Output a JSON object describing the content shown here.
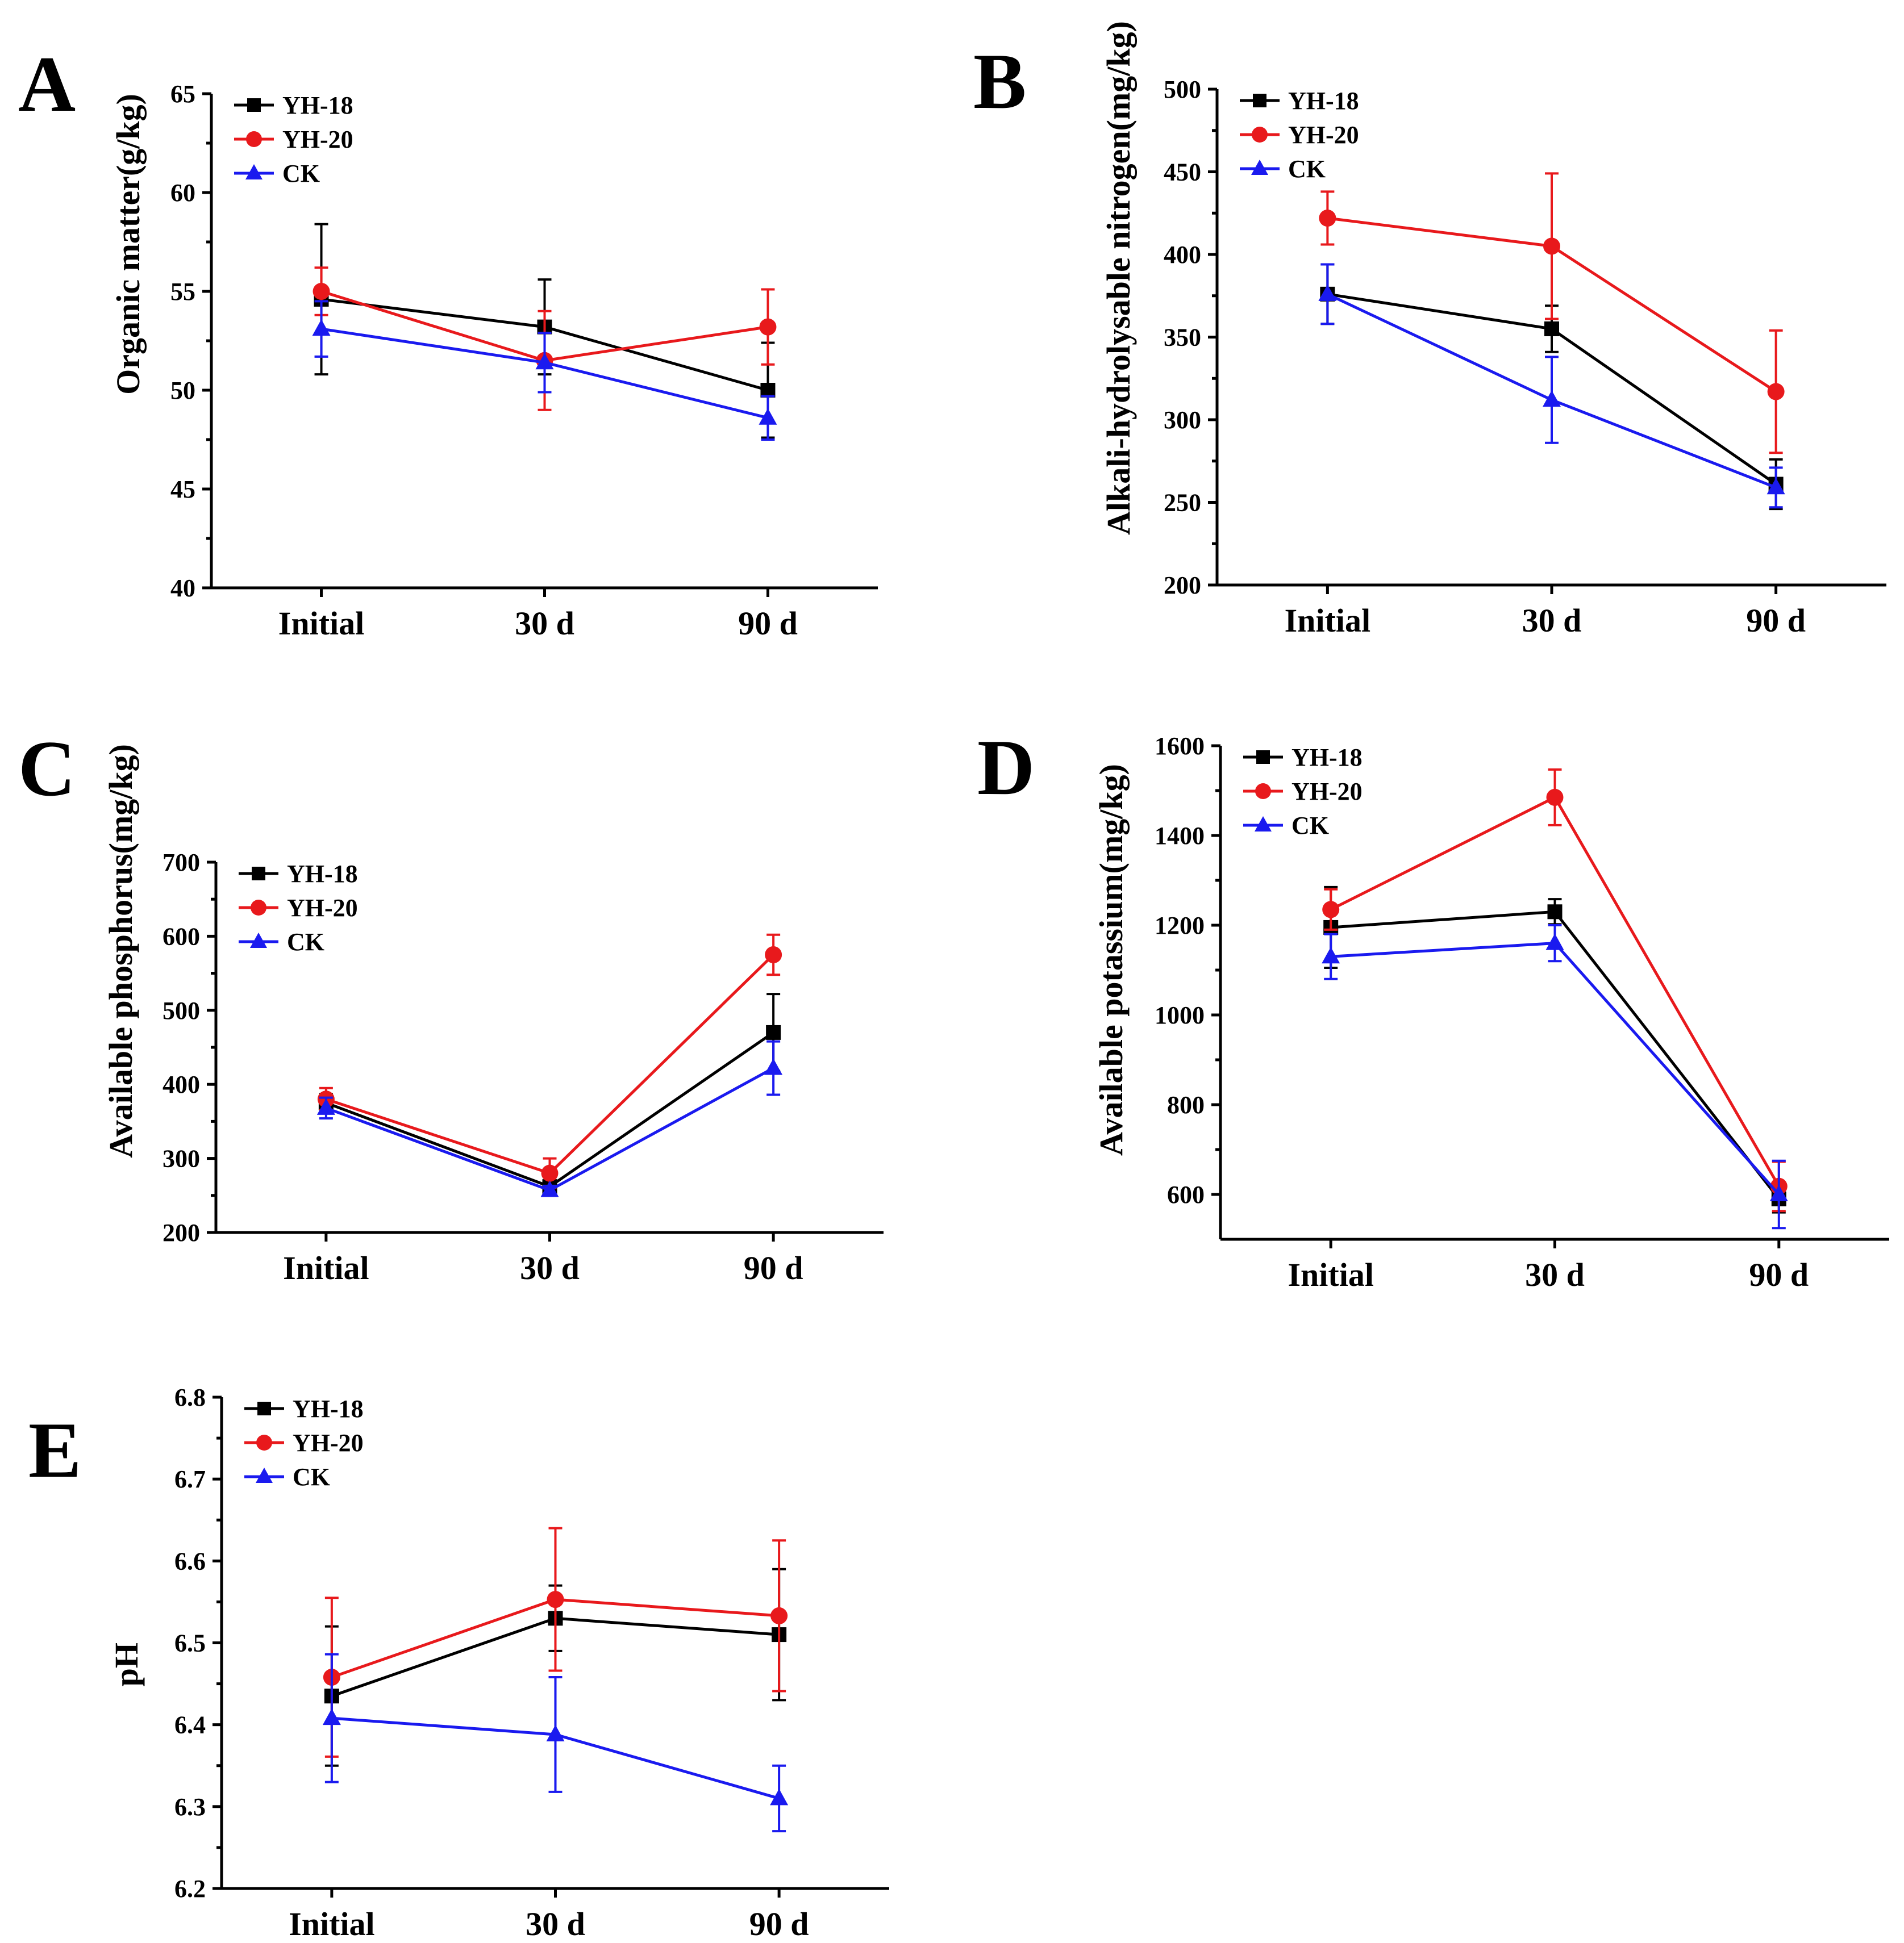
{
  "chart_data": [
    {
      "panel": "A",
      "type": "line",
      "ylabel": "Organic matter(g/kg)",
      "categories": [
        "Initial",
        "30 d",
        "90 d"
      ],
      "ylim": [
        40,
        65
      ],
      "yticks": [
        40,
        45,
        50,
        55,
        60,
        65
      ],
      "series": [
        {
          "name": "YH-18",
          "values": [
            54.6,
            53.2,
            50.0
          ],
          "errors": [
            3.8,
            2.4,
            2.4
          ]
        },
        {
          "name": "YH-20",
          "values": [
            55.0,
            51.5,
            53.2
          ],
          "errors": [
            1.2,
            2.5,
            1.9
          ]
        },
        {
          "name": "CK",
          "values": [
            53.1,
            51.4,
            48.6
          ],
          "errors": [
            1.4,
            1.5,
            1.1
          ]
        }
      ]
    },
    {
      "panel": "B",
      "type": "line",
      "ylabel": "Alkali-hydrolysable nitrogen(mg/kg)",
      "categories": [
        "Initial",
        "30 d",
        "90 d"
      ],
      "ylim": [
        200,
        500
      ],
      "yticks": [
        200,
        250,
        300,
        350,
        400,
        450,
        500
      ],
      "series": [
        {
          "name": "YH-18",
          "values": [
            376,
            355,
            261
          ],
          "errors": [
            18,
            14,
            15
          ]
        },
        {
          "name": "YH-20",
          "values": [
            422,
            405,
            317
          ],
          "errors": [
            16,
            44,
            37
          ]
        },
        {
          "name": "CK",
          "values": [
            376,
            312,
            259
          ],
          "errors": [
            18,
            26,
            12
          ]
        }
      ]
    },
    {
      "panel": "C",
      "type": "line",
      "ylabel": "Available phosphorus(mg/kg)",
      "categories": [
        "Initial",
        "30 d",
        "90 d"
      ],
      "ylim": [
        200,
        700
      ],
      "yticks": [
        200,
        300,
        400,
        500,
        600,
        700
      ],
      "series": [
        {
          "name": "YH-18",
          "values": [
            375,
            262,
            470
          ],
          "errors": [
            12,
            8,
            52
          ]
        },
        {
          "name": "YH-20",
          "values": [
            380,
            280,
            575
          ],
          "errors": [
            15,
            20,
            27
          ]
        },
        {
          "name": "CK",
          "values": [
            368,
            257,
            422
          ],
          "errors": [
            14,
            6,
            36
          ]
        }
      ]
    },
    {
      "panel": "D",
      "type": "line",
      "ylabel": "Available potassium(mg/kg)",
      "categories": [
        "Initial",
        "30 d",
        "90 d"
      ],
      "ylim": [
        500,
        1600
      ],
      "yticks": [
        600,
        800,
        1000,
        1200,
        1400,
        1600
      ],
      "series": [
        {
          "name": "YH-18",
          "values": [
            1195,
            1230,
            590
          ],
          "errors": [
            90,
            28,
            30
          ]
        },
        {
          "name": "YH-20",
          "values": [
            1235,
            1485,
            618
          ],
          "errors": [
            45,
            62,
            55
          ]
        },
        {
          "name": "CK",
          "values": [
            1130,
            1160,
            600
          ],
          "errors": [
            50,
            40,
            75
          ]
        }
      ]
    },
    {
      "panel": "E",
      "type": "line",
      "ylabel": "pH",
      "categories": [
        "Initial",
        "30 d",
        "90 d"
      ],
      "ylim": [
        6.2,
        6.8
      ],
      "yticks": [
        6.2,
        6.3,
        6.4,
        6.5,
        6.6,
        6.7,
        6.8
      ],
      "series": [
        {
          "name": "YH-18",
          "values": [
            6.435,
            6.53,
            6.51
          ],
          "errors": [
            0.085,
            0.04,
            0.08
          ]
        },
        {
          "name": "YH-20",
          "values": [
            6.458,
            6.553,
            6.533
          ],
          "errors": [
            0.097,
            0.087,
            0.092
          ]
        },
        {
          "name": "CK",
          "values": [
            6.408,
            6.388,
            6.31
          ],
          "errors": [
            0.078,
            0.07,
            0.04
          ]
        }
      ]
    }
  ],
  "series_colors": {
    "YH-18": "#000000",
    "YH-20": "#e8191c",
    "CK": "#1a1aef"
  },
  "series_markers": {
    "YH-18": "square",
    "YH-20": "circle",
    "CK": "triangle"
  }
}
